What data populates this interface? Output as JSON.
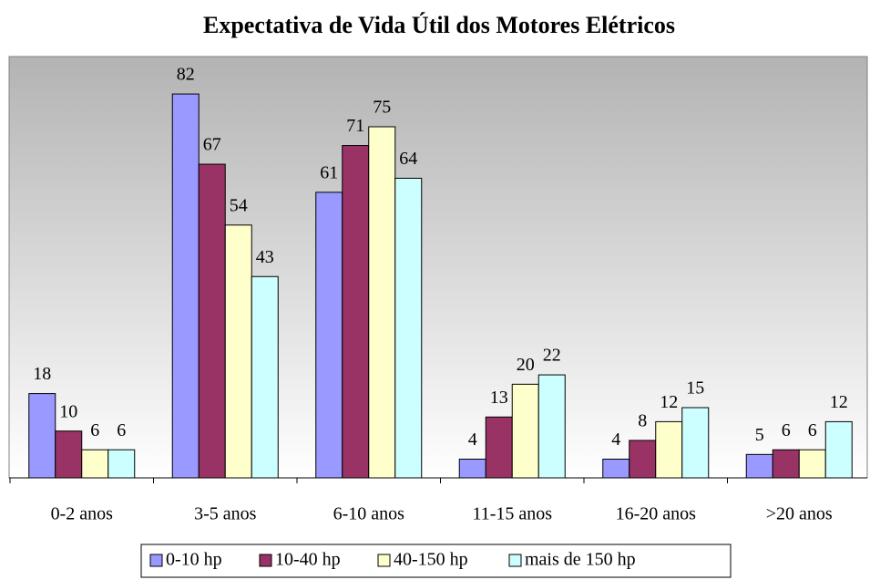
{
  "chart_data": {
    "type": "bar",
    "title": "Expectativa de Vida Útil dos Motores Elétricos",
    "categories": [
      "0-2 anos",
      "3-5 anos",
      "6-10 anos",
      "11-15 anos",
      "16-20 anos",
      ">20 anos"
    ],
    "series": [
      {
        "name": "0-10 hp",
        "color": "#9999ff",
        "values": [
          18,
          82,
          61,
          4,
          4,
          5
        ]
      },
      {
        "name": "10-40 hp",
        "color": "#993366",
        "values": [
          10,
          67,
          71,
          13,
          8,
          6
        ]
      },
      {
        "name": "40-150 hp",
        "color": "#ffffcc",
        "values": [
          6,
          54,
          75,
          20,
          12,
          6
        ]
      },
      {
        "name": "mais de 150 hp",
        "color": "#ccffff",
        "values": [
          6,
          43,
          64,
          22,
          15,
          12
        ]
      }
    ],
    "ylim": [
      0,
      90
    ],
    "legend": "bottom"
  }
}
